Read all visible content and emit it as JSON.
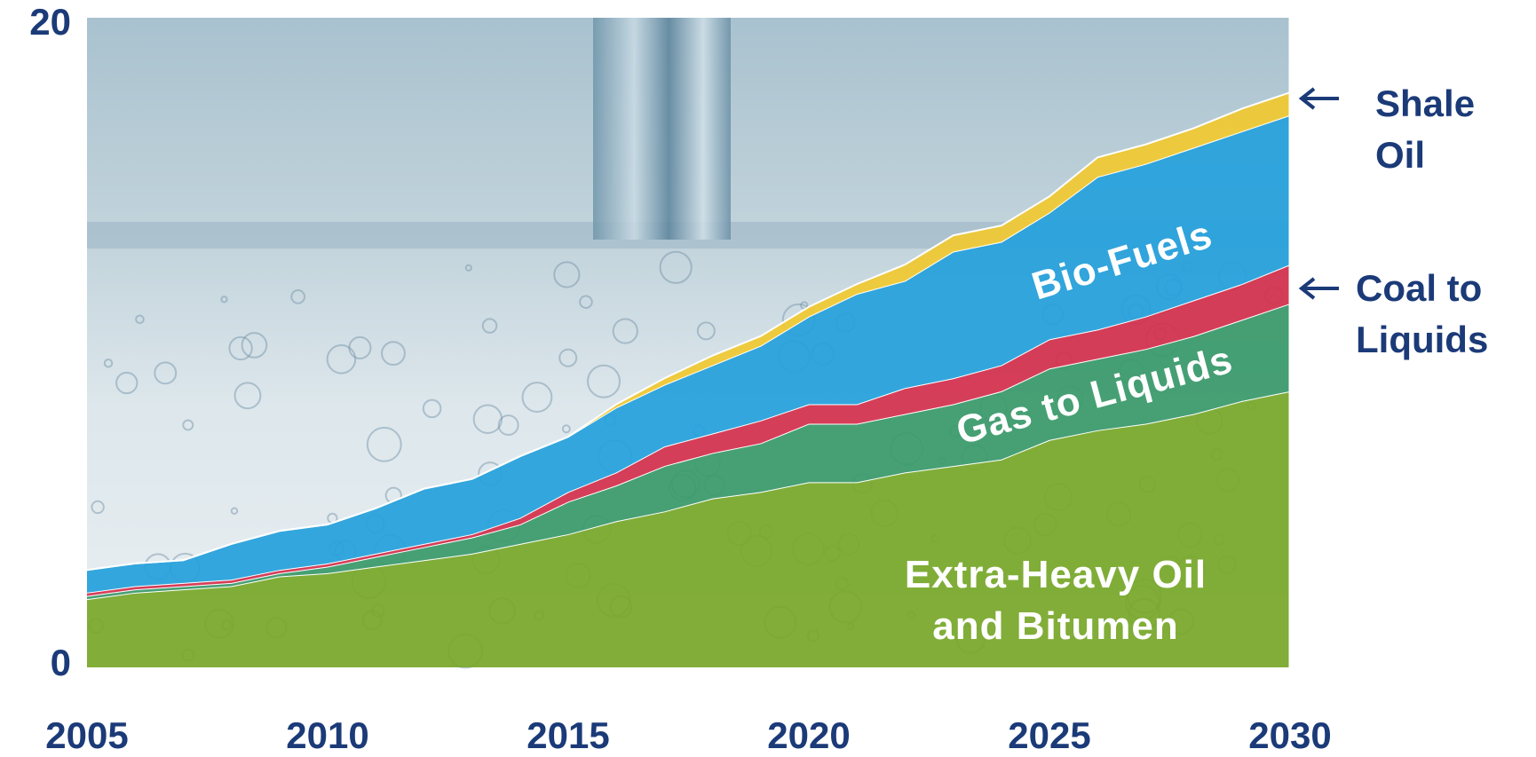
{
  "chart_data": {
    "type": "area",
    "x": [
      2005,
      2006,
      2007,
      2008,
      2009,
      2010,
      2011,
      2012,
      2013,
      2014,
      2015,
      2016,
      2017,
      2018,
      2019,
      2020,
      2021,
      2022,
      2023,
      2024,
      2025,
      2026,
      2027,
      2028,
      2029,
      2030
    ],
    "stacked": true,
    "series": [
      {
        "name": "Extra-Heavy Oil and Bitumen",
        "color": "#78a82a",
        "values": [
          2.1,
          2.3,
          2.4,
          2.5,
          2.8,
          2.9,
          3.1,
          3.3,
          3.5,
          3.8,
          4.1,
          4.5,
          4.8,
          5.2,
          5.4,
          5.7,
          5.7,
          6.0,
          6.2,
          6.4,
          7.0,
          7.3,
          7.5,
          7.8,
          8.2,
          8.5
        ]
      },
      {
        "name": "Gas to Liquids",
        "color": "#3a9a6a",
        "values": [
          0.1,
          0.1,
          0.1,
          0.1,
          0.1,
          0.2,
          0.3,
          0.4,
          0.5,
          0.6,
          1.0,
          1.1,
          1.4,
          1.4,
          1.5,
          1.8,
          1.8,
          1.8,
          1.9,
          2.1,
          2.2,
          2.2,
          2.3,
          2.4,
          2.5,
          2.7
        ]
      },
      {
        "name": "Coal to Liquids",
        "color": "#d4304c",
        "values": [
          0.1,
          0.1,
          0.1,
          0.1,
          0.1,
          0.1,
          0.1,
          0.1,
          0.1,
          0.2,
          0.3,
          0.4,
          0.6,
          0.6,
          0.7,
          0.6,
          0.6,
          0.8,
          0.8,
          0.8,
          0.9,
          0.9,
          1.0,
          1.1,
          1.1,
          1.2
        ]
      },
      {
        "name": "Bio-Fuels",
        "color": "#26a0dc",
        "values": [
          0.7,
          0.7,
          0.7,
          1.1,
          1.2,
          1.2,
          1.4,
          1.7,
          1.7,
          1.9,
          1.7,
          2.0,
          1.9,
          2.1,
          2.3,
          2.7,
          3.4,
          3.3,
          3.9,
          3.8,
          3.9,
          4.7,
          4.7,
          4.7,
          4.7,
          4.6
        ]
      },
      {
        "name": "Shale Oil",
        "color": "#f0c832",
        "values": [
          0,
          0,
          0,
          0,
          0,
          0,
          0,
          0,
          0,
          0,
          0,
          0.1,
          0.2,
          0.3,
          0.3,
          0.3,
          0.3,
          0.5,
          0.5,
          0.5,
          0.5,
          0.6,
          0.6,
          0.6,
          0.7,
          0.7
        ]
      }
    ],
    "xlim": [
      2005,
      2030
    ],
    "xticks": [
      2005,
      2010,
      2015,
      2020,
      2025,
      2030
    ],
    "ylim": [
      0,
      20
    ],
    "yticks": [
      0,
      20
    ]
  }
}
